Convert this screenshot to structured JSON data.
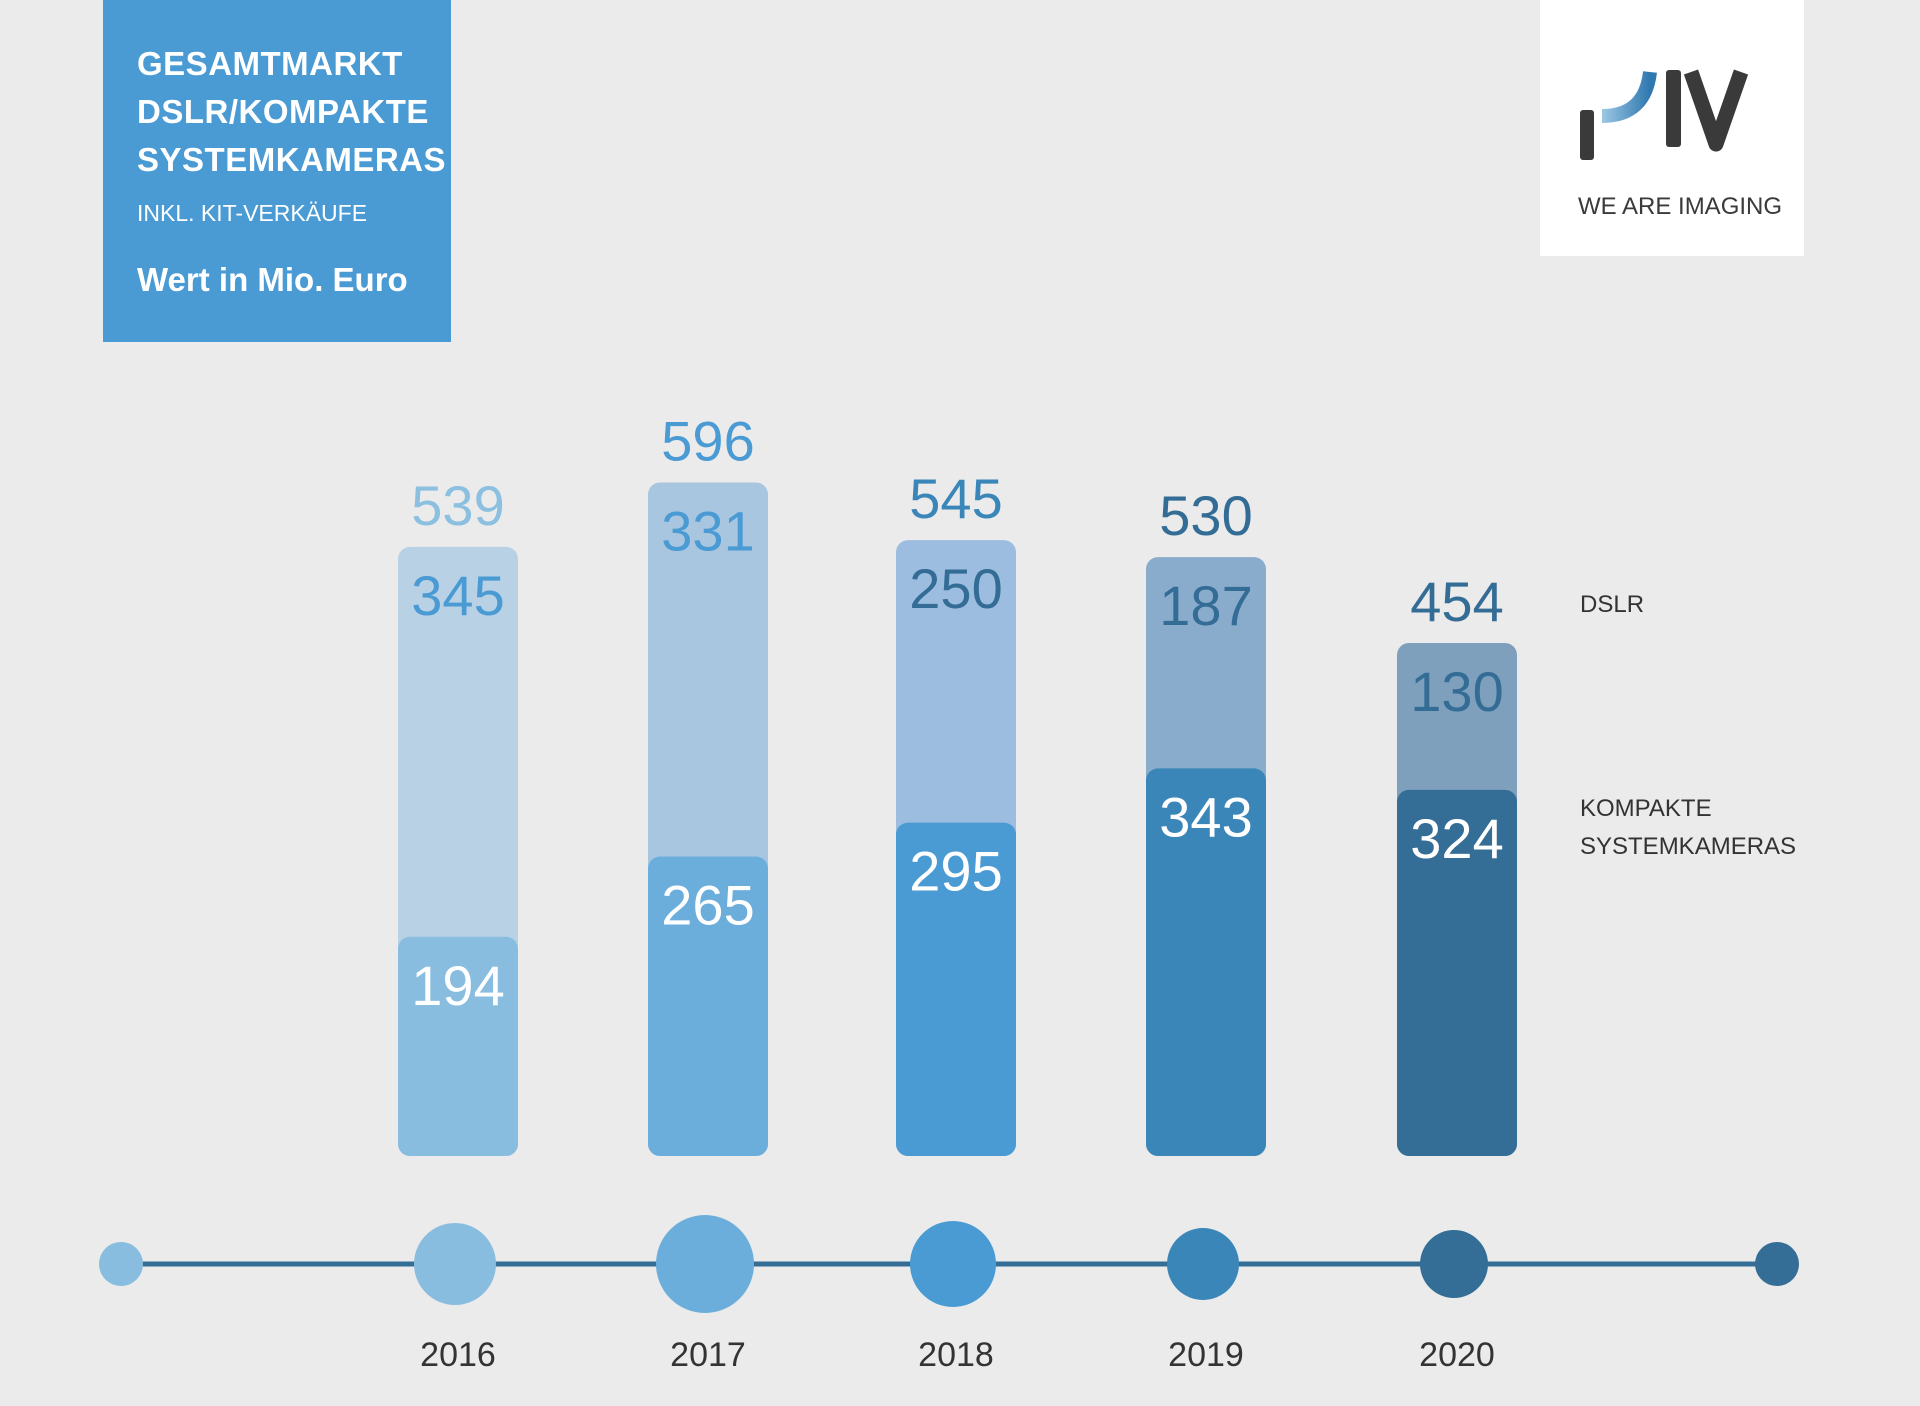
{
  "header": {
    "title": "GESAMTMARKT DSLR/KOMPAKTE SYSTEMKAMERAS",
    "subtitle": "INKL. KIT-VERKÄUFE",
    "unit": "Wert in Mio. Euro"
  },
  "logo": {
    "text": "PIV",
    "tagline": "WE ARE IMAGING"
  },
  "chart_data": {
    "type": "bar",
    "stacked": true,
    "title": "GESAMTMARKT DSLR/KOMPAKTE SYSTEMKAMERAS",
    "ylabel": "Wert in Mio. Euro",
    "categories": [
      "2016",
      "2017",
      "2018",
      "2019",
      "2020"
    ],
    "series": [
      {
        "name": "KOMPAKTE SYSTEMKAMERAS",
        "values": [
          194,
          265,
          295,
          343,
          324
        ]
      },
      {
        "name": "DSLR",
        "values": [
          345,
          331,
          250,
          187,
          130
        ]
      }
    ],
    "totals": [
      539,
      596,
      545,
      530,
      454
    ],
    "legend": [
      "DSLR",
      "KOMPAKTE SYSTEMKAMERAS"
    ],
    "legend_placement": "right",
    "colors": {
      "compact": [
        "#89bde0",
        "#6baedc",
        "#4a9ad4",
        "#3a86b8",
        "#346d95"
      ],
      "dslr": [
        "#b8d1e5",
        "#a8c6e0",
        "#9dbde0",
        "#8aaccc",
        "#7fa0bd"
      ],
      "total_label": [
        "#8cc0e0",
        "#4a9ad4",
        "#3a86b8",
        "#336c94",
        "#336c94"
      ],
      "dslr_label": [
        "#4a9ad4",
        "#4a9ad4",
        "#336c94",
        "#336c94",
        "#336c94"
      ],
      "timeline": "#346d95"
    }
  }
}
